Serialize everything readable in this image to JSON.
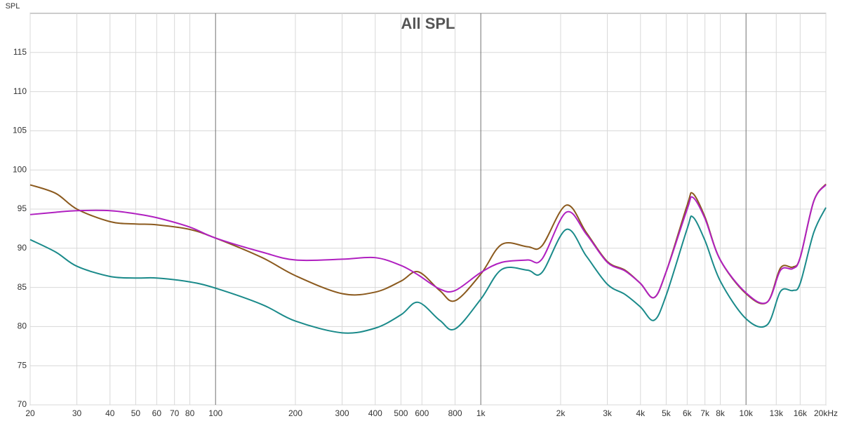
{
  "chart_data": {
    "type": "line",
    "title": "All SPL",
    "y_label": "SPL",
    "x_scale": "log",
    "grid": true,
    "xlim": [
      20,
      20000
    ],
    "ylim": [
      70,
      120
    ],
    "xticks": [
      20,
      30,
      40,
      50,
      60,
      70,
      80,
      100,
      200,
      300,
      400,
      500,
      600,
      800,
      {
        "value": 1000,
        "label": "1k"
      },
      {
        "value": 2000,
        "label": "2k"
      },
      {
        "value": 3000,
        "label": "3k"
      },
      {
        "value": 4000,
        "label": "4k"
      },
      {
        "value": 5000,
        "label": "5k"
      },
      {
        "value": 6000,
        "label": "6k"
      },
      {
        "value": 7000,
        "label": "7k"
      },
      {
        "value": 8000,
        "label": "8k"
      },
      {
        "value": 10000,
        "label": "10k"
      },
      {
        "value": 13000,
        "label": "13k"
      },
      {
        "value": 16000,
        "label": "16k"
      },
      {
        "value": 20000,
        "label": "20kHz"
      }
    ],
    "yticks": [
      70,
      75,
      80,
      85,
      90,
      95,
      100,
      105,
      110,
      115
    ],
    "x": [
      20,
      25,
      30,
      40,
      50,
      60,
      80,
      100,
      150,
      200,
      300,
      400,
      500,
      580,
      700,
      800,
      1000,
      1200,
      1500,
      1700,
      2100,
      2500,
      3000,
      3500,
      4000,
      4500,
      5000,
      6000,
      6300,
      7000,
      8000,
      10000,
      12000,
      13500,
      15000,
      16000,
      18000,
      20000
    ],
    "series": [
      {
        "name": "Brown",
        "color": "#8b5a1e",
        "values": [
          98.1,
          97,
          95,
          93.4,
          93.1,
          93.0,
          92.4,
          91.3,
          88.8,
          86.5,
          84.2,
          84.4,
          85.8,
          87.0,
          84.6,
          83.3,
          86.7,
          90.5,
          90.2,
          90.3,
          95.5,
          92,
          88.3,
          87.2,
          85.5,
          83.7,
          87,
          95.5,
          97,
          94,
          88.5,
          84.2,
          83.1,
          87.5,
          87.6,
          88.8,
          96,
          98.2
        ]
      },
      {
        "name": "Purple",
        "color": "#b020c0",
        "values": [
          94.3,
          94.6,
          94.8,
          94.8,
          94.4,
          93.9,
          92.7,
          91.3,
          89.5,
          88.5,
          88.6,
          88.8,
          87.8,
          86.6,
          84.8,
          84.6,
          86.9,
          88.2,
          88.5,
          88.6,
          94.6,
          91.8,
          88.2,
          87.1,
          85.5,
          83.7,
          87,
          95,
          96.5,
          93.8,
          88.5,
          84.3,
          83.1,
          87.2,
          87.4,
          88.8,
          96,
          98.1
        ]
      },
      {
        "name": "Teal",
        "color": "#1a8a8a",
        "values": [
          91.1,
          89.5,
          87.7,
          86.4,
          86.2,
          86.2,
          85.7,
          84.9,
          82.8,
          80.7,
          79.2,
          79.8,
          81.5,
          83.1,
          80.8,
          79.7,
          83.5,
          87.3,
          87.2,
          86.9,
          92.4,
          89,
          85.4,
          84.1,
          82.5,
          80.8,
          84,
          92.5,
          94,
          91,
          85.8,
          81,
          80.2,
          84.5,
          84.6,
          85.5,
          92,
          95.2
        ]
      }
    ]
  }
}
